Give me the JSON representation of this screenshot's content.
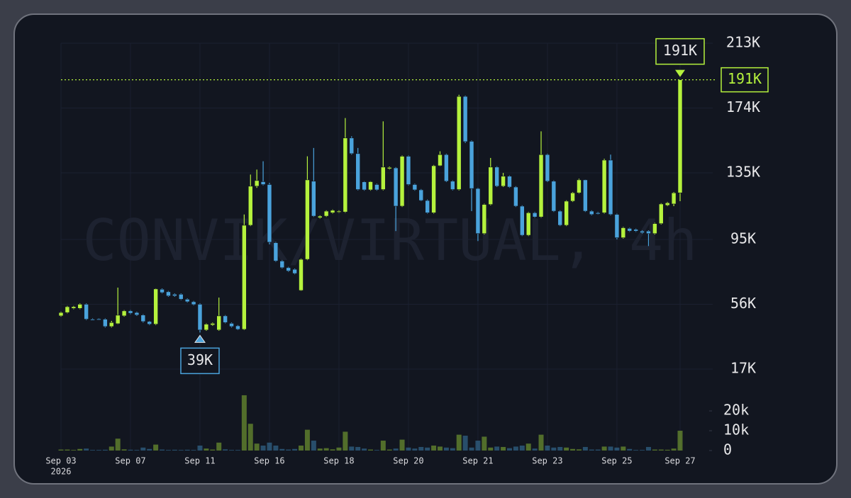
{
  "chart_data": {
    "type": "candlestick",
    "watermark": "CONVIK/VIRTUAL, 4h",
    "categories": [
      "Sep 03",
      null,
      null,
      null,
      null,
      null,
      null,
      null,
      null,
      null,
      null,
      "Sep 07",
      null,
      null,
      null,
      null,
      null,
      null,
      null,
      null,
      null,
      null,
      "Sep 11",
      null,
      null,
      null,
      null,
      null,
      null,
      null,
      null,
      null,
      null,
      "Sep 16",
      null,
      null,
      null,
      null,
      null,
      null,
      null,
      null,
      null,
      null,
      "Sep 18",
      null,
      null,
      null,
      null,
      null,
      null,
      null,
      null,
      null,
      null,
      "Sep 20",
      null,
      null,
      null,
      null,
      null,
      null,
      null,
      null,
      null,
      null,
      "Sep 21",
      null,
      null,
      null,
      null,
      null,
      null,
      null,
      null,
      null,
      null,
      "Sep 23",
      null,
      null,
      null,
      null,
      null,
      null,
      null,
      null,
      null,
      null,
      "Sep 25",
      null,
      null,
      null,
      null,
      null,
      null,
      null,
      null,
      null,
      "Sep 27"
    ],
    "x_year_label": "2026",
    "open": [
      49000,
      51000,
      53500,
      53500,
      56000,
      47000,
      47200,
      47000,
      42600,
      44300,
      49000,
      52000,
      51000,
      49500,
      45600,
      44000,
      65000,
      63500,
      62000,
      62000,
      59000,
      57500,
      56000,
      40500,
      43500,
      40500,
      49000,
      44500,
      43000,
      40900,
      103500,
      127000,
      129700,
      128000,
      93000,
      82000,
      78000,
      77000,
      64300,
      83000,
      130000,
      108000,
      109000,
      111000,
      111500,
      111500,
      156000,
      146600,
      129600,
      124800,
      128000,
      125000,
      137500,
      138000,
      115000,
      145000,
      128000,
      124800,
      118400,
      111000,
      139300,
      146000,
      130000,
      125000,
      181000,
      154000,
      125600,
      98500,
      116000,
      138500,
      127000,
      133000,
      126500,
      115000,
      97500,
      111000,
      108500,
      146000,
      130000,
      112000,
      103500,
      118000,
      123000,
      130800,
      112000,
      111000,
      111000,
      142700,
      110000,
      96000,
      101600,
      101000,
      100000,
      100000,
      98500,
      104500,
      115500,
      116300,
      123000
    ],
    "high": [
      51500,
      55000,
      55000,
      56500,
      56500,
      47500,
      47500,
      47500,
      46000,
      66000,
      52500,
      52500,
      51500,
      50000,
      46000,
      65500,
      65500,
      64000,
      62500,
      62500,
      59500,
      58000,
      56500,
      44500,
      45000,
      60000,
      49500,
      45000,
      43500,
      110000,
      134000,
      137000,
      142000,
      129000,
      93500,
      82500,
      78500,
      77500,
      83500,
      145000,
      150000,
      109500,
      112500,
      113000,
      112500,
      168000,
      157000,
      150000,
      130000,
      130000,
      128500,
      166000,
      138800,
      138500,
      145500,
      145500,
      128500,
      125300,
      119000,
      139800,
      148000,
      146500,
      130500,
      182000,
      181500,
      154500,
      126000,
      116500,
      144000,
      139000,
      135000,
      133500,
      127000,
      115500,
      111500,
      111500,
      160000,
      146500,
      130500,
      112500,
      118500,
      123500,
      131500,
      131000,
      112500,
      111500,
      143500,
      146000,
      110500,
      102500,
      102000,
      101500,
      100500,
      100500,
      105000,
      116800,
      117500,
      123500,
      191000
    ],
    "low": [
      48500,
      50500,
      53000,
      53000,
      46500,
      46500,
      46500,
      42000,
      42000,
      44000,
      48500,
      50000,
      49000,
      45000,
      43500,
      43500,
      62500,
      60500,
      60500,
      58500,
      57000,
      55300,
      39000,
      40000,
      43000,
      40000,
      44500,
      42000,
      40500,
      40500,
      103000,
      126000,
      127500,
      92000,
      81500,
      77500,
      75500,
      74000,
      64000,
      82500,
      108500,
      107500,
      108500,
      110500,
      111000,
      111000,
      146000,
      124500,
      124300,
      124300,
      124300,
      124500,
      137000,
      100000,
      114500,
      127500,
      124300,
      118000,
      110500,
      110500,
      139000,
      129500,
      124500,
      124500,
      153000,
      112000,
      94000,
      98000,
      115500,
      126500,
      126500,
      126000,
      114500,
      97000,
      97000,
      108000,
      108000,
      129500,
      111500,
      103000,
      103000,
      117500,
      122500,
      111500,
      109500,
      110000,
      110500,
      109500,
      95000,
      95500,
      99500,
      99500,
      98500,
      91000,
      98000,
      104000,
      115000,
      115000,
      118000
    ],
    "close": [
      51000,
      54500,
      54500,
      56000,
      47000,
      46800,
      47000,
      42600,
      45000,
      49400,
      52000,
      50600,
      49500,
      45600,
      44000,
      65200,
      63000,
      61000,
      61000,
      59000,
      57500,
      55800,
      40500,
      44000,
      44500,
      49000,
      45000,
      42600,
      40900,
      103500,
      127000,
      130400,
      128000,
      93300,
      82000,
      78000,
      76000,
      74500,
      83000,
      130800,
      109000,
      109000,
      112000,
      112500,
      112000,
      156000,
      146600,
      125000,
      124800,
      129700,
      124800,
      138500,
      138300,
      115000,
      145000,
      128000,
      124800,
      118400,
      111000,
      139300,
      146000,
      130000,
      125000,
      181000,
      153800,
      125600,
      98500,
      116000,
      138500,
      127000,
      133000,
      126500,
      115000,
      97500,
      111000,
      108500,
      146000,
      130000,
      112000,
      103500,
      118000,
      123000,
      130800,
      112000,
      110000,
      110300,
      142700,
      110000,
      96000,
      102000,
      100000,
      100000,
      99000,
      98500,
      104500,
      116300,
      117000,
      123000,
      191000
    ],
    "volume": [
      500,
      500,
      300,
      800,
      1000,
      300,
      300,
      400,
      2000,
      6000,
      600,
      400,
      300,
      1500,
      800,
      3000,
      500,
      300,
      400,
      300,
      400,
      300,
      2500,
      1000,
      500,
      4000,
      600,
      300,
      300,
      27900,
      13500,
      3500,
      2500,
      4000,
      2500,
      800,
      500,
      800,
      2500,
      10500,
      5000,
      1000,
      1200,
      600,
      1500,
      9500,
      2000,
      1800,
      1000,
      500,
      300,
      5000,
      500,
      1000,
      5500,
      1500,
      1000,
      1800,
      1500,
      2500,
      2000,
      1500,
      1200,
      8000,
      7500,
      1500,
      5000,
      7000,
      1500,
      2000,
      1800,
      1200,
      2000,
      2500,
      3500,
      1000,
      8000,
      2500,
      1500,
      1800,
      1500,
      800,
      600,
      1800,
      500,
      500,
      2000,
      2000,
      1500,
      2000,
      800,
      300,
      300,
      1800,
      500,
      500,
      400,
      1000,
      10000
    ],
    "up_color": "#b5f23d",
    "down_color": "#4aa3dc",
    "ylim": [
      17000,
      213000
    ],
    "yticks": [
      {
        "value": 213000,
        "label": "213K"
      },
      {
        "value": 174000,
        "label": "174K"
      },
      {
        "value": 135000,
        "label": "135K"
      },
      {
        "value": 95000,
        "label": "95K"
      },
      {
        "value": 56000,
        "label": "56K"
      },
      {
        "value": 17000,
        "label": "17K"
      }
    ],
    "volume_ylim": [
      0,
      28600
    ],
    "volume_ticks": [
      {
        "value": 20000,
        "label": "20k"
      },
      {
        "value": 10000,
        "label": "10k"
      },
      0
    ],
    "max_label": "191K",
    "min_label": "39K",
    "last_price_label": "191K",
    "grid": true
  }
}
